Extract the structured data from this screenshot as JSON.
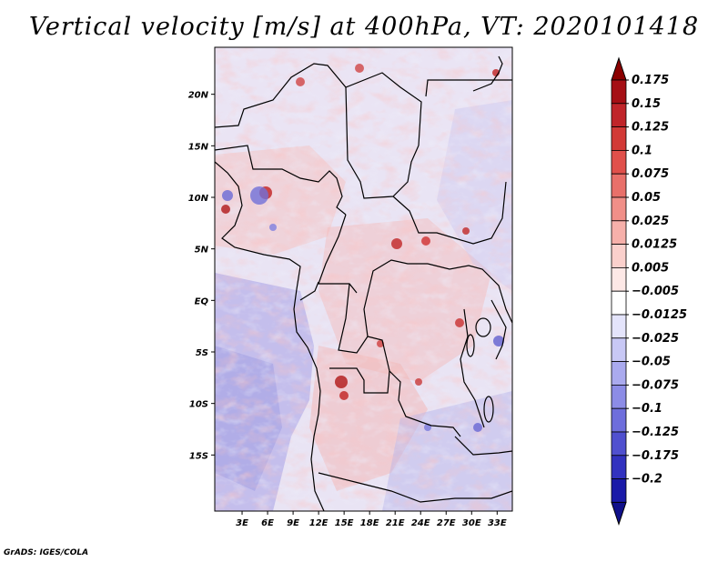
{
  "title": "Vertical velocity [m/s] at 400hPa, VT: 2020101418",
  "credit": "GrADS: IGES/COLA",
  "map": {
    "variable": "Vertical velocity",
    "units": "m/s",
    "level": "400hPa",
    "valid_time": "2020101418",
    "lat_range": [
      -20,
      25
    ],
    "lon_range": [
      0,
      35
    ],
    "lat_ticks": [
      {
        "value": 20,
        "label": "20N"
      },
      {
        "value": 15,
        "label": "15N"
      },
      {
        "value": 10,
        "label": "10N"
      },
      {
        "value": 5,
        "label": "5N"
      },
      {
        "value": 0,
        "label": "EQ"
      },
      {
        "value": -5,
        "label": "5S"
      },
      {
        "value": -10,
        "label": "10S"
      },
      {
        "value": -15,
        "label": "15S"
      }
    ],
    "lon_ticks": [
      {
        "value": 3,
        "label": "3E"
      },
      {
        "value": 6,
        "label": "6E"
      },
      {
        "value": 9,
        "label": "9E"
      },
      {
        "value": 12,
        "label": "12E"
      },
      {
        "value": 15,
        "label": "15E"
      },
      {
        "value": 18,
        "label": "18E"
      },
      {
        "value": 21,
        "label": "21E"
      },
      {
        "value": 24,
        "label": "24E"
      },
      {
        "value": 27,
        "label": "27E"
      },
      {
        "value": 30,
        "label": "30E"
      },
      {
        "value": 33,
        "label": "33E"
      }
    ]
  },
  "colorbar": {
    "levels": [
      {
        "label": "0.175",
        "color": "#a50f15"
      },
      {
        "label": "0.15",
        "color": "#c0252a"
      },
      {
        "label": "0.125",
        "color": "#d23a37"
      },
      {
        "label": "0.1",
        "color": "#e0504b"
      },
      {
        "label": "0.075",
        "color": "#e8706a"
      },
      {
        "label": "0.05",
        "color": "#f08f88"
      },
      {
        "label": "0.025",
        "color": "#f6b0aa"
      },
      {
        "label": "0.0125",
        "color": "#fad0cc"
      },
      {
        "label": "0.005",
        "color": "#fde8e6"
      },
      {
        "label": "-0.005",
        "color": "#ffffff"
      },
      {
        "label": "-0.0125",
        "color": "#e4e4fb"
      },
      {
        "label": "-0.025",
        "color": "#c8c8f5"
      },
      {
        "label": "-0.05",
        "color": "#aaaaee"
      },
      {
        "label": "-0.075",
        "color": "#8c8ce6"
      },
      {
        "label": "-0.1",
        "color": "#6e6edc"
      },
      {
        "label": "-0.125",
        "color": "#5050cf"
      },
      {
        "label": "-0.175",
        "color": "#3232bf"
      },
      {
        "label": "-0.2",
        "color": "#1a1aa8"
      }
    ],
    "top_color": "#8b0000",
    "bottom_color": "#10108a"
  }
}
